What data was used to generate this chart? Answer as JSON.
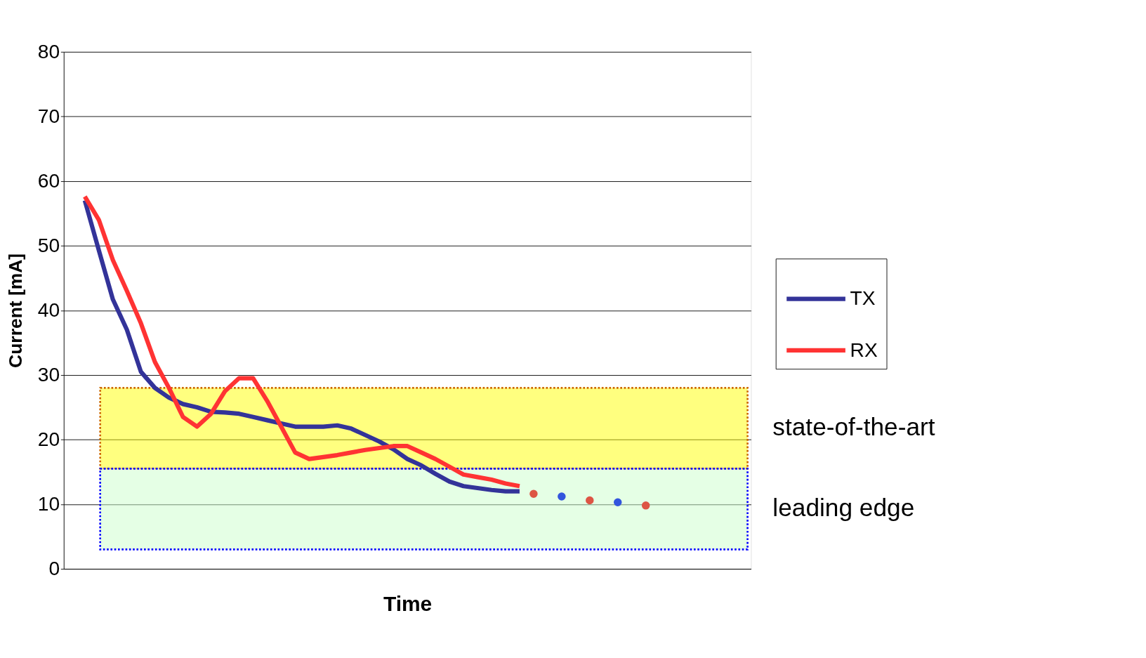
{
  "chart_data": {
    "type": "line",
    "xlabel": "Time",
    "ylabel": "Current [mA]",
    "categories": [
      null,
      null,
      null,
      null,
      null,
      null,
      null,
      null,
      null,
      null,
      null,
      null,
      null,
      null,
      null,
      null,
      null,
      null,
      null,
      null,
      null,
      null,
      null,
      null,
      null,
      null,
      null,
      null,
      null,
      null,
      null,
      null,
      null,
      null,
      null,
      null,
      null,
      null,
      null,
      null,
      null,
      null,
      null,
      null,
      null,
      null,
      null,
      null,
      null
    ],
    "series": [
      {
        "name": "TX",
        "color": "#333399",
        "values": [
          null,
          57,
          49.3,
          41.7,
          37,
          30.5,
          28,
          26.5,
          25.5,
          25,
          24.3,
          24.2,
          24,
          23.5,
          23,
          22.5,
          22,
          22,
          22,
          22.2,
          21.7,
          20.7,
          19.7,
          18.5,
          17,
          16,
          14.7,
          13.5,
          12.8,
          12.5,
          12.2,
          12,
          12,
          null,
          null,
          null,
          null,
          null,
          null,
          null,
          null,
          null,
          null,
          null,
          null,
          null,
          null,
          null,
          null
        ]
      },
      {
        "name": "RX",
        "color": "#ff3333",
        "values": [
          null,
          57.6,
          54,
          47.8,
          43,
          38,
          32,
          28,
          23.5,
          22,
          24,
          27.5,
          29.5,
          29.5,
          26,
          22,
          18,
          17,
          17.3,
          17.6,
          18,
          18.4,
          18.7,
          19,
          19,
          18,
          17,
          15.8,
          14.6,
          14.2,
          13.8,
          13.2,
          12.8,
          null,
          null,
          null,
          null,
          null,
          null,
          null,
          null,
          null,
          null,
          null,
          null,
          null,
          null,
          null,
          null
        ]
      },
      {
        "type": "scatter",
        "marker": "circle",
        "color": "#3355dd",
        "values": [
          null,
          null,
          null,
          null,
          null,
          null,
          null,
          null,
          null,
          null,
          null,
          null,
          null,
          null,
          null,
          null,
          null,
          null,
          null,
          null,
          null,
          null,
          null,
          null,
          null,
          null,
          null,
          null,
          null,
          null,
          null,
          null,
          null,
          null,
          null,
          11.2,
          null,
          null,
          null,
          10.3,
          null,
          null,
          null,
          null,
          null,
          null,
          null,
          null,
          null
        ]
      },
      {
        "type": "scatter",
        "marker": "circle",
        "color": "#dd5544",
        "values": [
          null,
          null,
          null,
          null,
          null,
          null,
          null,
          null,
          null,
          null,
          null,
          null,
          null,
          null,
          null,
          null,
          null,
          null,
          null,
          null,
          null,
          null,
          null,
          null,
          null,
          null,
          null,
          null,
          null,
          null,
          null,
          null,
          null,
          11.6,
          null,
          null,
          null,
          10.6,
          null,
          null,
          null,
          9.8,
          null,
          null,
          null,
          null,
          null,
          null,
          null
        ]
      }
    ],
    "bands": [
      {
        "axis": "y",
        "from": 15.5,
        "to": 28,
        "label": "state-of-the-art",
        "color": "#ffff00"
      },
      {
        "axis": "y",
        "from": 3,
        "to": 15.5,
        "label": "leading edge",
        "color": "#ccffcc"
      }
    ],
    "ylim": [
      0,
      80
    ],
    "yticks": [
      0,
      10,
      20,
      30,
      40,
      50,
      60,
      70,
      80
    ],
    "grid": "y",
    "legend": "right",
    "tick_labels": "y",
    "line_style": "solid",
    "marker": "none"
  }
}
